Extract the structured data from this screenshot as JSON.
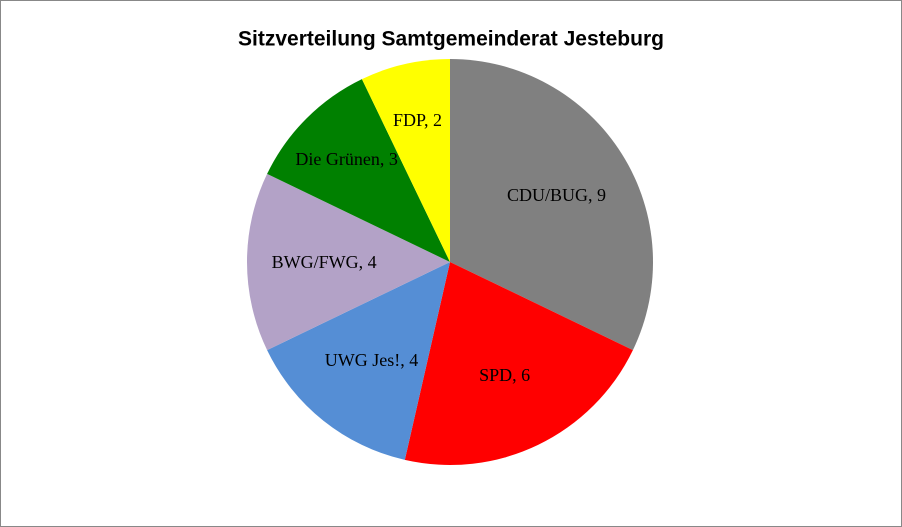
{
  "chart_data": {
    "type": "pie",
    "title": "Sitzverteilung Samtgemeinderat Jesteburg",
    "values": [
      9,
      6,
      4,
      4,
      3,
      2
    ],
    "value_labels": [
      "CDU/BUG, 9",
      "SPD, 6",
      "UWG Jes!, 4",
      "BWG/FWG, 4",
      "Die Grünen, 3",
      "FDP, 2"
    ],
    "colors": [
      "#808080",
      "#ff0000",
      "#558ed5",
      "#b3a2c7",
      "#008000",
      "#ffff00"
    ]
  }
}
